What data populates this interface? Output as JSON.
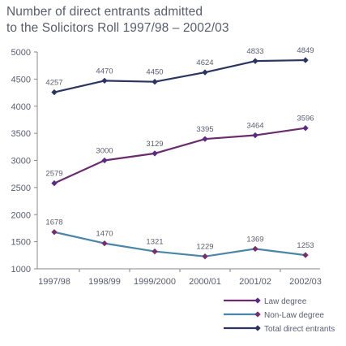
{
  "chart_data": {
    "type": "line",
    "title_lines": [
      "Number of direct entrants admitted",
      "to the Solicitors Roll 1997/98 – 2002/03"
    ],
    "categories": [
      "1997/98",
      "1998/99",
      "1999/2000",
      "2000/01",
      "2001/02",
      "2002/03"
    ],
    "ylim": [
      1000,
      5000
    ],
    "yticks": [
      1000,
      1500,
      2000,
      2500,
      3000,
      3500,
      4000,
      4500,
      5000
    ],
    "grid": false,
    "legend_position": "bottom-right",
    "series": [
      {
        "name": "Law degree",
        "values": [
          2579,
          3000,
          3129,
          3395,
          3464,
          3596
        ],
        "line_color": "#6b2c6e",
        "marker_color": "#5a2a8a"
      },
      {
        "name": "Non-Law degree",
        "values": [
          1678,
          1470,
          1321,
          1229,
          1369,
          1253
        ],
        "line_color": "#4a86a6",
        "marker_color": "#7a2c6a"
      },
      {
        "name": "Total direct entrants",
        "values": [
          4257,
          4470,
          4450,
          4624,
          4833,
          4849
        ],
        "line_color": "#2b3560",
        "marker_color": "#2b3560"
      }
    ],
    "axis_color": "#8a8a8a"
  }
}
